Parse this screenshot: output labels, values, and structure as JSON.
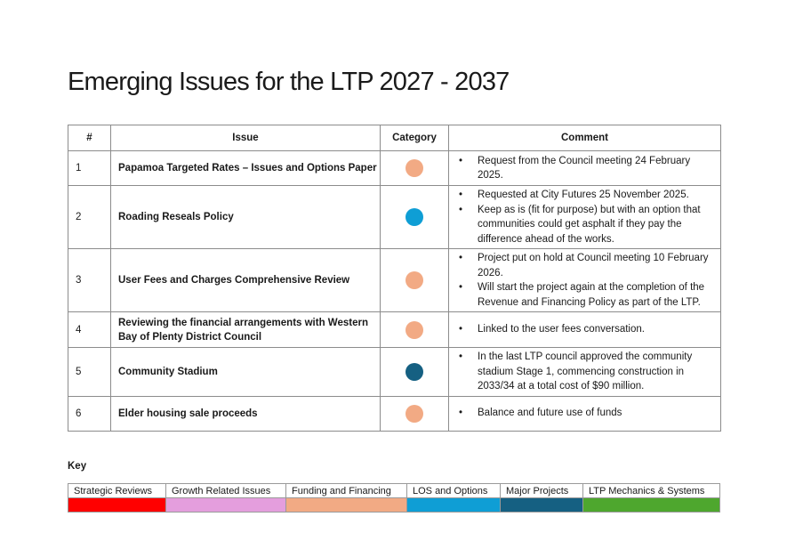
{
  "title": "Emerging Issues for the LTP 2027 - 2037",
  "table": {
    "headers": {
      "num": "#",
      "issue": "Issue",
      "category": "Category",
      "comment": "Comment"
    },
    "rows": [
      {
        "num": "1",
        "issue": "Papamoa Targeted Rates – Issues and Options Paper",
        "category": "Funding and Financing",
        "color": "#f2aa84",
        "comments": [
          "Request from the Council meeting 24 February 2025."
        ]
      },
      {
        "num": "2",
        "issue": "Roading Reseals Policy",
        "category": "LOS and Options",
        "color": "#0f9ed5",
        "comments": [
          "Requested at City Futures 25 November 2025.",
          "Keep as is (fit for purpose) but with an option that communities could get asphalt if they pay the difference ahead of the works."
        ]
      },
      {
        "num": "3",
        "issue": "User Fees and Charges Comprehensive Review",
        "category": "Funding and Financing",
        "color": "#f2aa84",
        "comments": [
          "Project put on hold at Council meeting 10 February 2026.",
          "Will start the project again at the completion of the Revenue and Financing Policy as part of the LTP."
        ]
      },
      {
        "num": "4",
        "issue": "Reviewing the financial arrangements with Western Bay of Plenty District Council",
        "category": "Funding and Financing",
        "color": "#f2aa84",
        "comments": [
          "Linked to the user fees conversation."
        ]
      },
      {
        "num": "5",
        "issue": "Community Stadium",
        "category": "Major Projects",
        "color": "#156082",
        "comments": [
          "In the last LTP council approved the community stadium Stage 1, commencing construction in 2033/34 at a total cost of $90 million."
        ]
      },
      {
        "num": "6",
        "issue": "Elder housing sale proceeds",
        "category": "Funding and Financing",
        "color": "#f2aa84",
        "comments": [
          "Balance and future use of funds"
        ]
      }
    ]
  },
  "key": {
    "label": "Key",
    "items": [
      {
        "label": "Strategic Reviews",
        "color": "#ff0000"
      },
      {
        "label": "Growth Related Issues",
        "color": "#e49edd"
      },
      {
        "label": "Funding and Financing",
        "color": "#f2aa84"
      },
      {
        "label": "LOS and Options",
        "color": "#0f9ed5"
      },
      {
        "label": "Major Projects",
        "color": "#156082"
      },
      {
        "label": "LTP Mechanics & Systems",
        "color": "#4ea72e"
      }
    ]
  }
}
